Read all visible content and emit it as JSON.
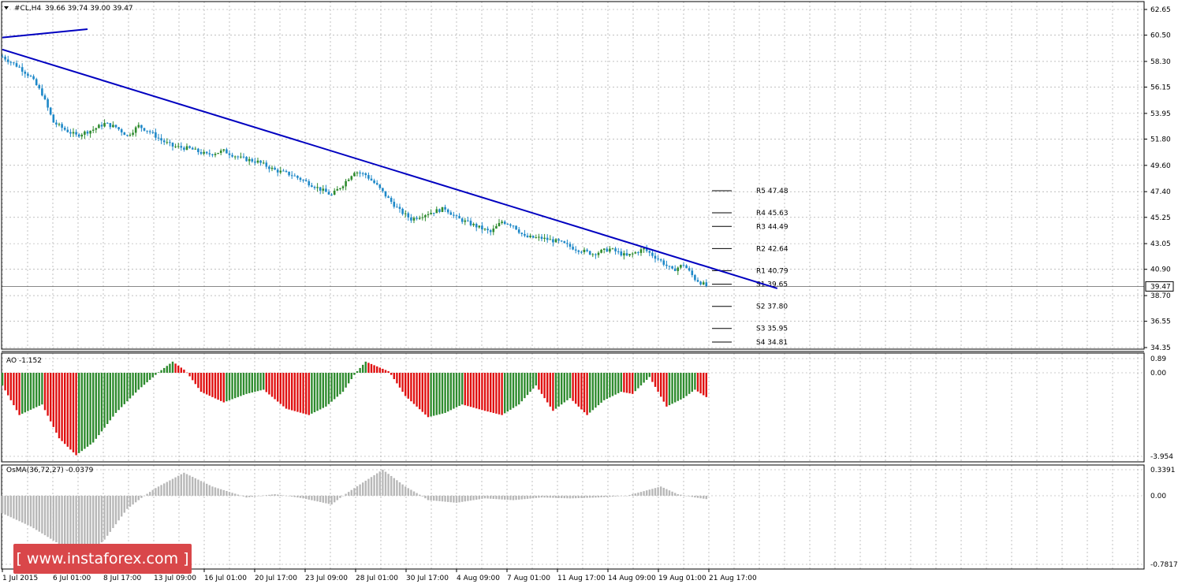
{
  "header": {
    "symbol_label": "#CL,H4",
    "ohlc_label": "39.66 39.74 39.00 39.47"
  },
  "indicators": {
    "ao_label": "AO -1.152",
    "osma_label": "OsMA(36,72,27) -0.0379"
  },
  "price_axis": {
    "ticks": [
      "62.65",
      "60.50",
      "58.30",
      "56.15",
      "53.95",
      "51.80",
      "49.60",
      "47.40",
      "45.25",
      "43.05",
      "40.90",
      "38.70",
      "36.55",
      "34.35"
    ],
    "current_price": "39.47"
  },
  "ao_axis": {
    "ticks": [
      "0.89",
      "0.00",
      "-3.954"
    ]
  },
  "osma_axis": {
    "ticks": [
      "0.3391",
      "0.00",
      "-0.7817"
    ]
  },
  "time_axis": {
    "ticks": [
      "1 Jul 2015",
      "6 Jul 01:00",
      "8 Jul 17:00",
      "13 Jul 09:00",
      "16 Jul 01:00",
      "20 Jul 17:00",
      "23 Jul 09:00",
      "28 Jul 01:00",
      "30 Jul 17:00",
      "4 Aug 09:00",
      "7 Aug 01:00",
      "11 Aug 17:00",
      "14 Aug 09:00",
      "19 Aug 01:00",
      "21 Aug 17:00"
    ]
  },
  "pivot_levels": [
    {
      "name": "R5",
      "label": "R5 47.48",
      "value": 47.48
    },
    {
      "name": "R4",
      "label": "R4 45.63",
      "value": 45.63
    },
    {
      "name": "R3",
      "label": "R3 44.49",
      "value": 44.49
    },
    {
      "name": "R2",
      "label": "R2 42.64",
      "value": 42.64
    },
    {
      "name": "R1",
      "label": "R1 40.79",
      "value": 40.79
    },
    {
      "name": "S1",
      "label": "S1 39.65",
      "value": 39.65
    },
    {
      "name": "S2",
      "label": "S2 37.80",
      "value": 37.8
    },
    {
      "name": "S3",
      "label": "S3 35.95",
      "value": 35.95
    },
    {
      "name": "S4",
      "label": "S4 34.81",
      "value": 34.81
    }
  ],
  "watermark": {
    "text": "[  www.instaforex.com  ]"
  },
  "colors": {
    "bull": "#2e8b2e",
    "bear": "#1e88c8",
    "trendline": "#0000c0",
    "ao_up": "#2e8b2e",
    "ao_down": "#e01010",
    "osma": "#b8b8b8",
    "grid": "#9a9a9a"
  },
  "chart_data": {
    "type": "candlestick",
    "symbol": "#CL",
    "timeframe": "H4",
    "ylim": [
      34.35,
      62.65
    ],
    "close_path": [
      [
        0,
        58.7
      ],
      [
        6,
        57.8
      ],
      [
        10,
        57.0
      ],
      [
        14,
        55.6
      ],
      [
        16,
        54.4
      ],
      [
        18,
        53.2
      ],
      [
        22,
        52.6
      ],
      [
        26,
        52.1
      ],
      [
        32,
        52.6
      ],
      [
        36,
        53.1
      ],
      [
        40,
        52.8
      ],
      [
        44,
        52.1
      ],
      [
        48,
        52.9
      ],
      [
        52,
        52.4
      ],
      [
        56,
        51.7
      ],
      [
        60,
        51.2
      ],
      [
        66,
        51.0
      ],
      [
        72,
        50.5
      ],
      [
        78,
        50.8
      ],
      [
        84,
        50.2
      ],
      [
        90,
        49.9
      ],
      [
        96,
        49.2
      ],
      [
        102,
        48.8
      ],
      [
        108,
        48.1
      ],
      [
        112,
        47.6
      ],
      [
        116,
        47.1
      ],
      [
        120,
        48.0
      ],
      [
        124,
        49.1
      ],
      [
        128,
        48.8
      ],
      [
        132,
        47.9
      ],
      [
        136,
        46.8
      ],
      [
        140,
        45.8
      ],
      [
        144,
        45.1
      ],
      [
        150,
        45.6
      ],
      [
        156,
        46.0
      ],
      [
        160,
        45.2
      ],
      [
        166,
        44.6
      ],
      [
        172,
        44.0
      ],
      [
        176,
        44.9
      ],
      [
        180,
        44.6
      ],
      [
        184,
        43.6
      ],
      [
        190,
        43.5
      ],
      [
        196,
        43.2
      ],
      [
        202,
        42.6
      ],
      [
        208,
        42.2
      ],
      [
        214,
        42.6
      ],
      [
        220,
        42.0
      ],
      [
        226,
        42.6
      ],
      [
        232,
        41.6
      ],
      [
        236,
        40.8
      ],
      [
        240,
        41.3
      ],
      [
        244,
        40.1
      ],
      [
        248,
        39.5
      ]
    ],
    "trendlines": [
      {
        "from": [
          0,
          59.3
        ],
        "to": [
          273,
          39.3
        ]
      },
      {
        "from": [
          0,
          60.3
        ],
        "to": [
          30,
          61.0
        ]
      }
    ],
    "ao_range": [
      -3.954,
      0.89
    ],
    "ao_path": [
      [
        0,
        -0.6
      ],
      [
        6,
        -2.0
      ],
      [
        14,
        -1.5
      ],
      [
        20,
        -3.1
      ],
      [
        26,
        -3.9
      ],
      [
        32,
        -3.3
      ],
      [
        40,
        -1.9
      ],
      [
        48,
        -0.8
      ],
      [
        54,
        -0.1
      ],
      [
        60,
        0.7
      ],
      [
        64,
        0.2
      ],
      [
        70,
        -0.9
      ],
      [
        78,
        -1.4
      ],
      [
        86,
        -1.0
      ],
      [
        92,
        -0.8
      ],
      [
        100,
        -1.7
      ],
      [
        108,
        -2.0
      ],
      [
        114,
        -1.6
      ],
      [
        120,
        -0.9
      ],
      [
        128,
        0.7
      ],
      [
        136,
        0.1
      ],
      [
        142,
        -1.1
      ],
      [
        150,
        -2.1
      ],
      [
        156,
        -1.9
      ],
      [
        162,
        -1.5
      ],
      [
        170,
        -1.8
      ],
      [
        176,
        -2.0
      ],
      [
        182,
        -1.5
      ],
      [
        188,
        -0.6
      ],
      [
        194,
        -1.8
      ],
      [
        200,
        -1.2
      ],
      [
        206,
        -2.0
      ],
      [
        212,
        -1.3
      ],
      [
        218,
        -0.9
      ],
      [
        222,
        -1.0
      ],
      [
        228,
        -0.2
      ],
      [
        234,
        -1.6
      ],
      [
        240,
        -1.2
      ],
      [
        244,
        -0.8
      ],
      [
        248,
        -1.15
      ]
    ],
    "osma_range": [
      -0.7817,
      0.3391
    ],
    "osma_path": [
      [
        0,
        -0.2
      ],
      [
        10,
        -0.35
      ],
      [
        20,
        -0.55
      ],
      [
        28,
        -0.75
      ],
      [
        36,
        -0.5
      ],
      [
        44,
        -0.15
      ],
      [
        54,
        0.1
      ],
      [
        64,
        0.3
      ],
      [
        74,
        0.12
      ],
      [
        86,
        -0.02
      ],
      [
        96,
        0.02
      ],
      [
        106,
        -0.03
      ],
      [
        116,
        -0.1
      ],
      [
        124,
        0.1
      ],
      [
        134,
        0.34
      ],
      [
        142,
        0.12
      ],
      [
        150,
        -0.05
      ],
      [
        160,
        -0.08
      ],
      [
        170,
        -0.03
      ],
      [
        180,
        -0.05
      ],
      [
        190,
        -0.02
      ],
      [
        200,
        -0.03
      ],
      [
        210,
        -0.02
      ],
      [
        220,
        0.0
      ],
      [
        226,
        0.06
      ],
      [
        232,
        0.12
      ],
      [
        238,
        0.02
      ],
      [
        244,
        -0.02
      ],
      [
        248,
        -0.0379
      ]
    ]
  }
}
